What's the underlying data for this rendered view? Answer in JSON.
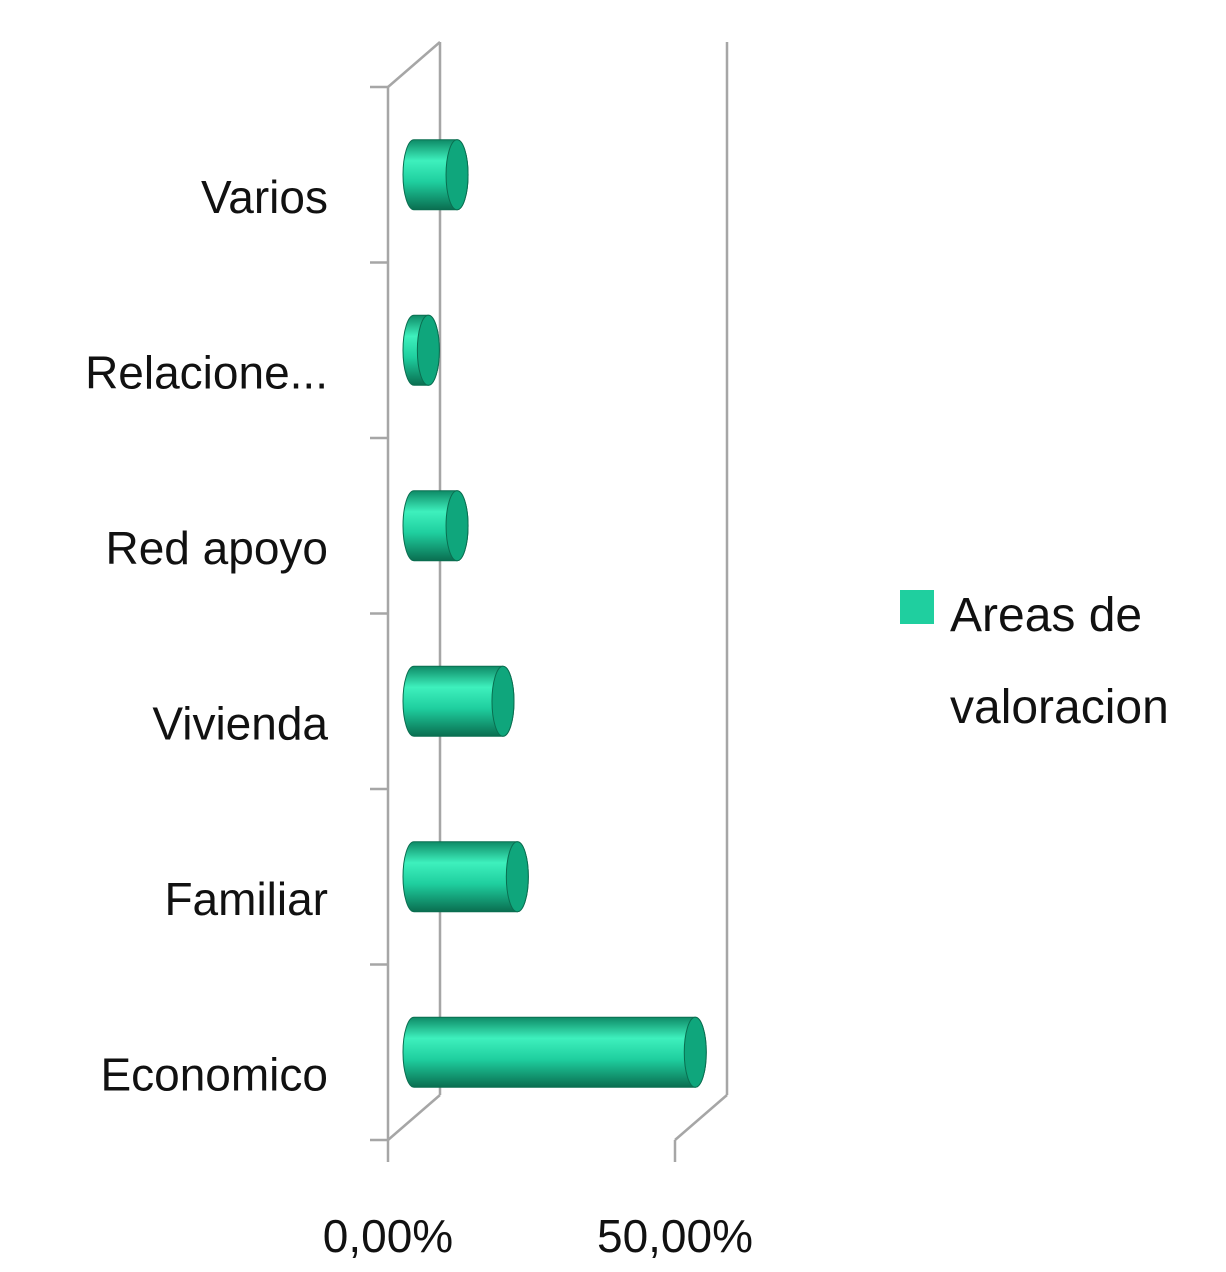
{
  "chart_data": {
    "type": "bar3d_horizontal",
    "categories": [
      "Economico",
      "Familiar",
      "Vivienda",
      "Red apoyo",
      "Relacione...",
      "Varios"
    ],
    "series": [
      {
        "name": "Areas de valoracion",
        "color": "#1fcf9f",
        "values": [
          49,
          18,
          15.5,
          7.5,
          2.5,
          7.5
        ]
      }
    ],
    "xlim": [
      0,
      50
    ],
    "xticks": [
      {
        "value": 0,
        "label": "0,00%"
      },
      {
        "value": 50,
        "label": "50,00%"
      }
    ],
    "legend": "right"
  }
}
